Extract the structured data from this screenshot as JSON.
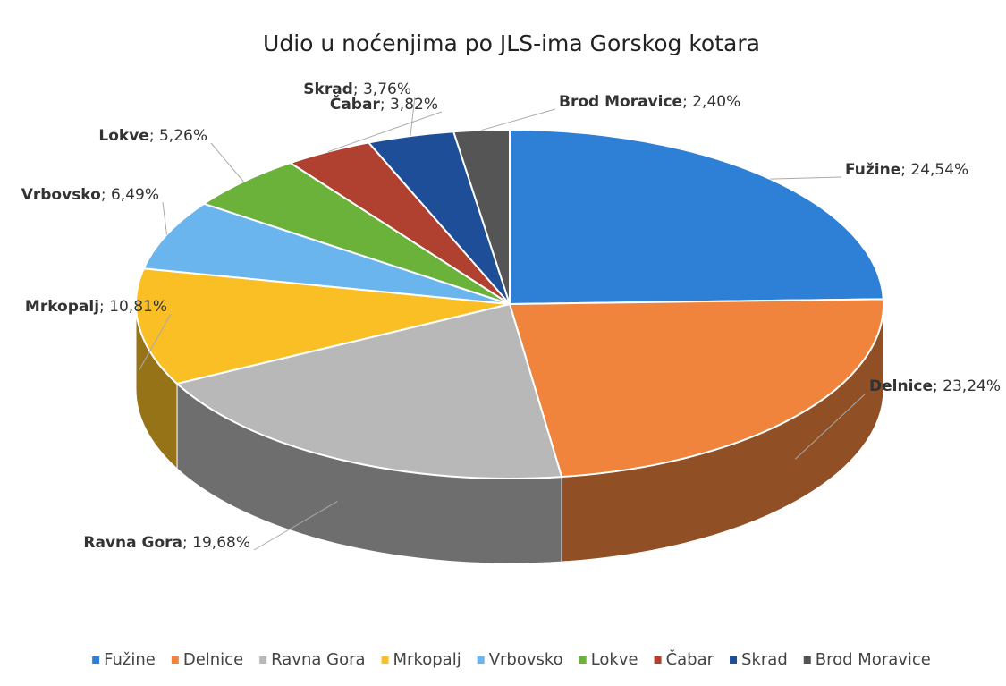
{
  "chart_data": {
    "type": "pie",
    "title": "Udio u noćenjima  po JLS-ima Gorskog kotara",
    "categories": [
      "Fužine",
      "Delnice",
      "Ravna Gora",
      "Mrkopalj",
      "Vrbovsko",
      "Lokve",
      "Čabar",
      "Skrad",
      "Brod Moravice"
    ],
    "values": [
      24.54,
      23.24,
      19.68,
      10.81,
      6.49,
      5.26,
      3.82,
      3.76,
      2.4
    ],
    "value_labels": [
      "24,54%",
      "23,24%",
      "19,68%",
      "10,81%",
      "6,49%",
      "5,26%",
      "3,82%",
      "3,76%",
      "2,40%"
    ],
    "label_separator": "; ",
    "colors": [
      "#2e7fd6",
      "#f0843c",
      "#b8b8b8",
      "#fbbf26",
      "#6bb5ee",
      "#6ab23a",
      "#b04030",
      "#1f4e99",
      "#555555"
    ],
    "legend": "bottom"
  }
}
